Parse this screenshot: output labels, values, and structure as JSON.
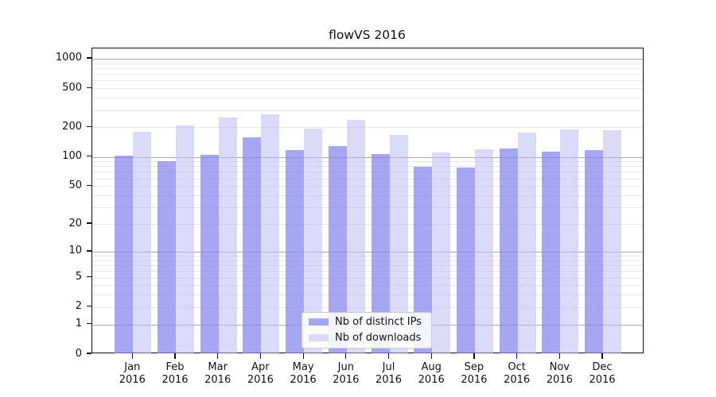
{
  "chart_data": {
    "type": "bar",
    "title": "flowVS 2016",
    "categories": [
      "Jan",
      "Feb",
      "Mar",
      "Apr",
      "May",
      "Jun",
      "Jul",
      "Aug",
      "Sep",
      "Oct",
      "Nov",
      "Dec"
    ],
    "category_year": "2016",
    "series": [
      {
        "name": "Nb of distinct IPs",
        "color": "rgba(132,132,238,0.72)",
        "values": [
          103,
          91,
          104,
          158,
          118,
          128,
          106,
          79,
          78,
          122,
          114,
          118
        ]
      },
      {
        "name": "Nb of downloads",
        "color": "rgba(186,186,244,0.52)",
        "values": [
          182,
          210,
          250,
          270,
          194,
          238,
          166,
          110,
          120,
          177,
          191,
          188
        ]
      }
    ],
    "y_ticks": [
      1000,
      500,
      200,
      100,
      50,
      20,
      10,
      5,
      2,
      1,
      0
    ],
    "y_scale": "log10(value+1)",
    "ylim": [
      0,
      1236
    ],
    "grid": true,
    "legend_position": "inside-bottom-center",
    "colors": {
      "major_gridline": "#ababab",
      "minor_gridline": "#e7e7e7",
      "axis": "#111111",
      "text": "#111111",
      "background": "#ffffff"
    }
  }
}
